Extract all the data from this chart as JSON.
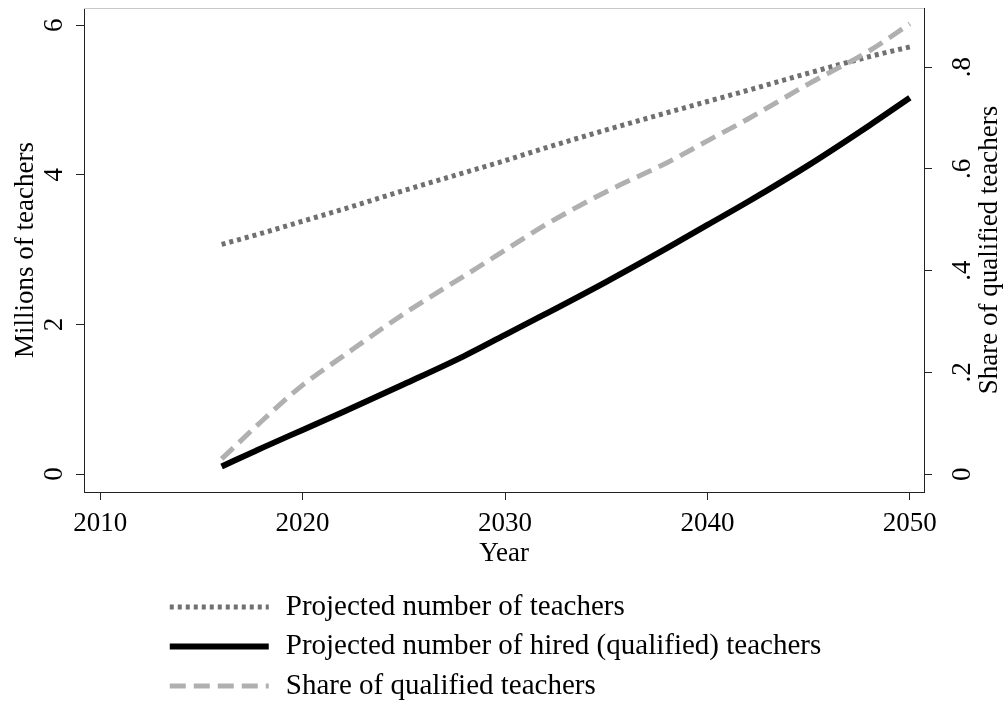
{
  "chart_data": {
    "type": "line",
    "xlabel": "Year",
    "ylabel": "Millions of teachers",
    "y2label": "Share of qualified teachers",
    "x": [
      2016,
      2018,
      2020,
      2022,
      2025,
      2028,
      2030,
      2032,
      2035,
      2038,
      2040,
      2042,
      2045,
      2048,
      2050
    ],
    "xlim": [
      2009.2,
      2050.7
    ],
    "xticks": [
      2010,
      2020,
      2030,
      2040,
      2050
    ],
    "ylim": [
      -0.24,
      6.23
    ],
    "yticks": [
      0,
      2,
      4,
      6
    ],
    "y2lim": [
      -0.035,
      0.916
    ],
    "y2ticks": [
      0,
      {
        "value": 0.2,
        "label": ".2"
      },
      {
        "value": 0.4,
        "label": ".4"
      },
      {
        "value": 0.6,
        "label": ".6"
      },
      {
        "value": 0.8,
        "label": ".8"
      }
    ],
    "legend": "bottom",
    "series": [
      {
        "name": "Projected number of teachers",
        "color": "#707070",
        "line_style": "dotted",
        "values": [
          3.07,
          3.22,
          3.38,
          3.54,
          3.79,
          4.03,
          4.19,
          4.36,
          4.6,
          4.83,
          4.98,
          5.13,
          5.36,
          5.58,
          5.71
        ]
      },
      {
        "name": "Projected number of hired (qualified) teachers",
        "color": "#000000",
        "line_style": "solid",
        "values": [
          0.1,
          0.35,
          0.59,
          0.83,
          1.2,
          1.58,
          1.86,
          2.14,
          2.57,
          3.02,
          3.33,
          3.64,
          4.13,
          4.66,
          5.03
        ]
      },
      {
        "name": "Share of qualified teachers",
        "color": "#b0b0b0",
        "line_style": "dashed",
        "axis": "y2",
        "values": [
          0.03,
          0.105,
          0.175,
          0.232,
          0.315,
          0.39,
          0.44,
          0.49,
          0.555,
          0.612,
          0.655,
          0.698,
          0.767,
          0.832,
          0.885
        ]
      }
    ]
  }
}
